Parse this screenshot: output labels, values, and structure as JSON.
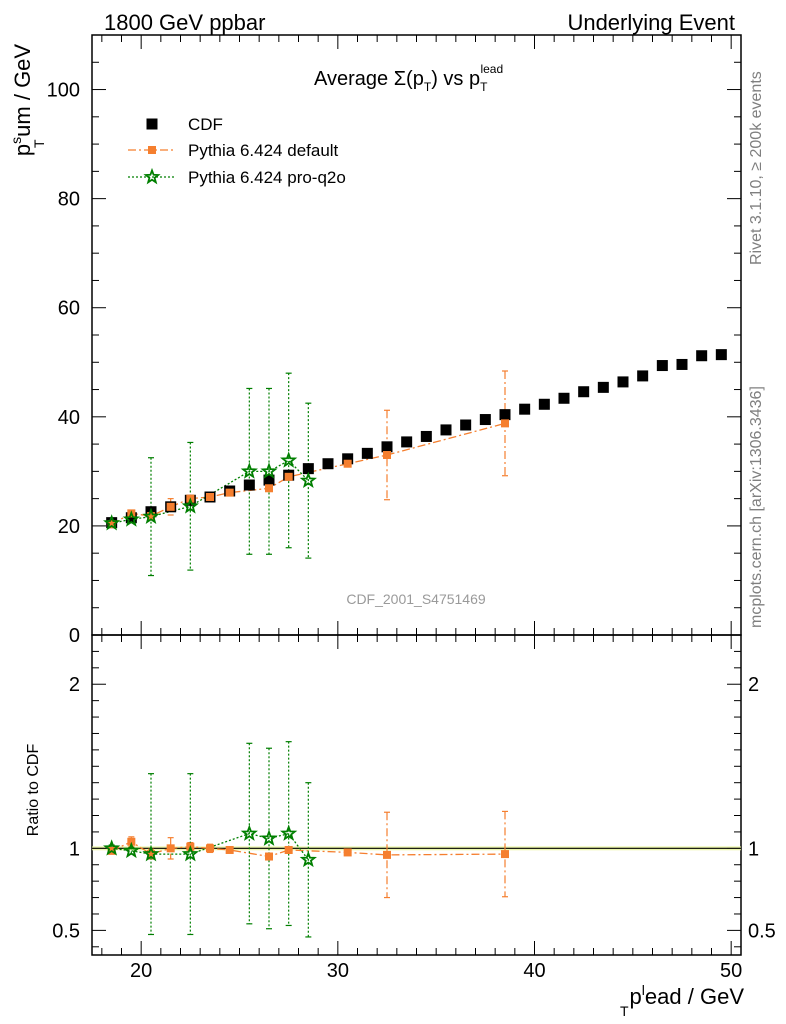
{
  "header": {
    "left_title": "1800 GeV ppbar",
    "right_title": "Underlying Event"
  },
  "side_labels": {
    "rivet": "Rivet 3.1.10, ≥ 200k events",
    "mcplots": "mcplots.cern.ch [arXiv:1306.3436]"
  },
  "plot": {
    "title_main": "Average Σ(p",
    "title_sub1": "T",
    "title_mid": ") vs p",
    "title_sub2": "T",
    "title_sup2": "lead",
    "watermark": "CDF_2001_S4751469",
    "ylabel_base": "p",
    "ylabel_sub": "T",
    "ylabel_sup": "s",
    "ylabel_rest": "um / GeV",
    "ratio_ylabel": "Ratio to CDF",
    "xlabel_base": "p",
    "xlabel_sub": "T",
    "xlabel_sup": "l",
    "xlabel_rest": "ead / GeV"
  },
  "legend": [
    {
      "label": "CDF",
      "color": "#000000",
      "marker": "square"
    },
    {
      "label": "Pythia 6.424 default",
      "color": "#f57f2f",
      "marker": "square"
    },
    {
      "label": "Pythia 6.424 pro-q2o",
      "color": "#007f00",
      "marker": "star"
    }
  ],
  "chart_data": {
    "type": "scatter",
    "xlim": [
      17.5,
      50.5
    ],
    "ylim": [
      0,
      110
    ],
    "ratio_ylim": [
      0.35,
      2.3
    ],
    "x_ticks": [
      20,
      30,
      40,
      50
    ],
    "y_ticks": [
      0,
      20,
      40,
      60,
      80,
      100
    ],
    "ratio_ticks": [
      0.5,
      1,
      2
    ],
    "ratio_tick_labels": [
      "0.5",
      "1",
      "2"
    ],
    "series": [
      {
        "name": "CDF",
        "color": "#000000",
        "marker": "square",
        "x": [
          18.5,
          19.5,
          20.5,
          21.5,
          22.5,
          23.5,
          24.5,
          25.5,
          26.5,
          27.5,
          28.5,
          29.5,
          30.5,
          31.5,
          32.5,
          33.5,
          34.5,
          35.5,
          36.5,
          37.5,
          38.5,
          39.5,
          40.5,
          41.5,
          42.5,
          43.5,
          44.5,
          45.5,
          46.5,
          47.5,
          48.5,
          49.5
        ],
        "y": [
          20.6,
          21.5,
          22.6,
          23.5,
          24.7,
          25.3,
          26.4,
          27.5,
          28.4,
          29.3,
          30.5,
          31.4,
          32.3,
          33.3,
          34.5,
          35.4,
          36.4,
          37.6,
          38.5,
          39.5,
          40.4,
          41.4,
          42.3,
          43.4,
          44.6,
          45.4,
          46.4,
          47.5,
          49.4,
          49.6,
          51.2,
          51.4
        ]
      },
      {
        "name": "Pythia 6.424 default",
        "color": "#f57f2f",
        "marker": "square",
        "line": "dashdot",
        "x": [
          18.5,
          19.5,
          20.5,
          21.5,
          22.5,
          23.5,
          24.5,
          26.5,
          27.5,
          30.5,
          32.5,
          38.5
        ],
        "y": [
          20.3,
          22.3,
          21.8,
          23.5,
          25.0,
          25.3,
          26.1,
          26.9,
          29.0,
          31.4,
          33.0,
          38.8
        ],
        "err": [
          0.5,
          0.6,
          0.6,
          1.5,
          0.6,
          0.6,
          0.4,
          0.5,
          0.5,
          0.4,
          8.2,
          9.6
        ],
        "ratio": [
          0.985,
          1.04,
          0.965,
          1.0,
          1.01,
          1.0,
          0.99,
          0.95,
          0.99,
          0.975,
          0.96,
          0.965
        ],
        "ratio_err": [
          0.02,
          0.03,
          0.03,
          0.065,
          0.025,
          0.025,
          0.015,
          0.02,
          0.02,
          0.015,
          0.26,
          0.26
        ]
      },
      {
        "name": "Pythia 6.424 pro-q2o",
        "color": "#007f00",
        "marker": "star",
        "line": "dotted",
        "x": [
          18.5,
          19.5,
          20.5,
          22.5,
          25.5,
          26.5,
          27.5,
          28.5
        ],
        "y": [
          20.5,
          21.2,
          21.7,
          23.6,
          30.0,
          30.0,
          32.0,
          28.3
        ],
        "err": [
          0.4,
          0.4,
          10.8,
          11.7,
          15.2,
          15.2,
          16.0,
          14.2
        ],
        "ratio": [
          1.0,
          0.985,
          0.965,
          0.965,
          1.09,
          1.06,
          1.09,
          0.93
        ],
        "ratio_err": [
          0.02,
          0.02,
          0.49,
          0.49,
          0.55,
          0.55,
          0.56,
          0.47
        ]
      }
    ]
  }
}
